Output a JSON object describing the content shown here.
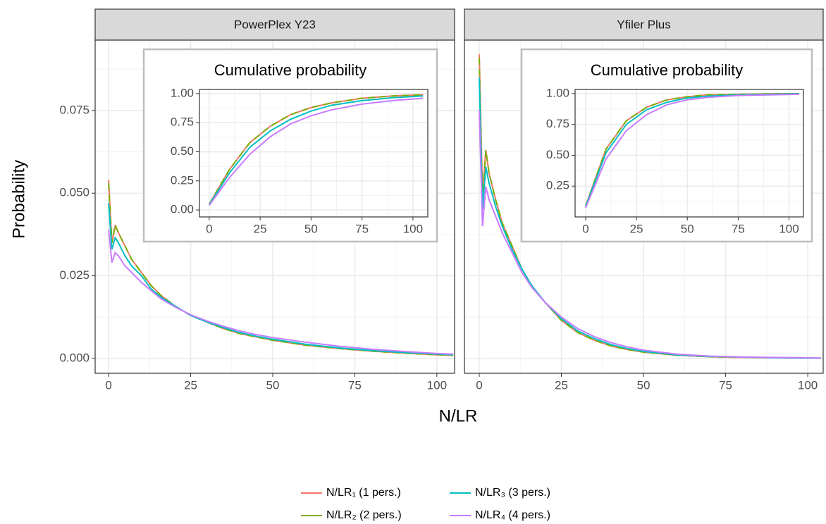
{
  "chart_data": {
    "type": "line",
    "xlabel": "N/LR",
    "ylabel": "Probability",
    "legend": "bottom",
    "series": [
      {
        "name": "N/LR₁ (1 pers.)",
        "color": "#F8766D",
        "linestyle": "solid"
      },
      {
        "name": "N/LR₂ (2 pers.)",
        "color": "#7CAE00",
        "linestyle": "dashed"
      },
      {
        "name": "N/LR₃ (3 pers.)",
        "color": "#00BFC4",
        "linestyle": "solid"
      },
      {
        "name": "N/LR₄ (4 pers.)",
        "color": "#C77CFF",
        "linestyle": "solid"
      }
    ],
    "panels": [
      {
        "title": "PowerPlex Y23",
        "xlim": [
          -4.1,
          105.4
        ],
        "ylim": [
          -0.0045,
          0.0963
        ],
        "xticks": [
          0,
          25,
          50,
          75,
          100
        ],
        "yticks": [
          {
            "value": 0,
            "label": "0.000"
          },
          {
            "value": 0.025,
            "label": "0.025"
          },
          {
            "value": 0.05,
            "label": "0.050"
          },
          {
            "value": 0.075,
            "label": "0.075"
          }
        ],
        "x": [
          0,
          1,
          2,
          3,
          5,
          7,
          10,
          13,
          16,
          20,
          25,
          30,
          35,
          40,
          45,
          50,
          60,
          70,
          80,
          90,
          100,
          105
        ],
        "values": [
          [
            0.054,
            0.035,
            0.04,
            0.038,
            0.034,
            0.03,
            0.026,
            0.022,
            0.019,
            0.016,
            0.013,
            0.011,
            0.009,
            0.0075,
            0.0065,
            0.0055,
            0.004,
            0.003,
            0.0022,
            0.0016,
            0.0011,
            0.0009
          ],
          [
            0.053,
            0.035,
            0.0405,
            0.038,
            0.034,
            0.03,
            0.026,
            0.022,
            0.019,
            0.016,
            0.013,
            0.011,
            0.009,
            0.0075,
            0.0065,
            0.0055,
            0.004,
            0.003,
            0.0022,
            0.0016,
            0.0011,
            0.0009
          ],
          [
            0.047,
            0.033,
            0.0365,
            0.035,
            0.031,
            0.028,
            0.025,
            0.021,
            0.0185,
            0.016,
            0.013,
            0.011,
            0.0093,
            0.0078,
            0.0067,
            0.0058,
            0.0043,
            0.0032,
            0.0024,
            0.0018,
            0.0013,
            0.0011
          ],
          [
            0.039,
            0.029,
            0.032,
            0.031,
            0.028,
            0.026,
            0.023,
            0.0205,
            0.018,
            0.0157,
            0.0132,
            0.0113,
            0.0097,
            0.0083,
            0.0072,
            0.0063,
            0.0049,
            0.0037,
            0.0028,
            0.0021,
            0.0015,
            0.0013
          ]
        ],
        "inset": {
          "title": "Cumulative probability",
          "xlim": [
            -4.8,
            107.3
          ],
          "ylim": [
            -0.06,
            1.036
          ],
          "xticks": [
            0,
            25,
            50,
            75,
            100
          ],
          "yticks": [
            {
              "value": 0,
              "label": "0.00"
            },
            {
              "value": 0.25,
              "label": "0.25"
            },
            {
              "value": 0.5,
              "label": "0.50"
            },
            {
              "value": 0.75,
              "label": "0.75"
            },
            {
              "value": 1,
              "label": "1.00"
            }
          ],
          "x": [
            0,
            10,
            20,
            30,
            40,
            50,
            60,
            75,
            90,
            105
          ],
          "values": [
            [
              0.05,
              0.35,
              0.58,
              0.72,
              0.82,
              0.88,
              0.92,
              0.96,
              0.98,
              0.99
            ],
            [
              0.05,
              0.35,
              0.58,
              0.72,
              0.82,
              0.88,
              0.92,
              0.96,
              0.98,
              0.99
            ],
            [
              0.045,
              0.32,
              0.54,
              0.68,
              0.78,
              0.85,
              0.9,
              0.94,
              0.965,
              0.98
            ],
            [
              0.04,
              0.28,
              0.48,
              0.63,
              0.74,
              0.81,
              0.86,
              0.91,
              0.94,
              0.96
            ]
          ]
        }
      },
      {
        "title": "Yfiler Plus",
        "xlim": [
          -4.5,
          104.7
        ],
        "ylim": [
          -0.0045,
          0.0963
        ],
        "xticks": [
          0,
          25,
          50,
          75,
          100
        ],
        "yticks": [
          0,
          0.025,
          0.05,
          0.075
        ],
        "x": [
          0,
          1,
          2,
          3,
          5,
          7,
          10,
          13,
          16,
          20,
          25,
          30,
          35,
          40,
          45,
          50,
          60,
          70,
          80,
          90,
          100,
          104
        ],
        "values": [
          [
            0.092,
            0.05,
            0.063,
            0.056,
            0.048,
            0.041,
            0.034,
            0.027,
            0.022,
            0.017,
            0.0115,
            0.0078,
            0.0055,
            0.0038,
            0.0027,
            0.0019,
            0.001,
            0.0005,
            0.0003,
            0.0002,
            0.0001,
            0.0001
          ],
          [
            0.091,
            0.047,
            0.063,
            0.056,
            0.048,
            0.041,
            0.034,
            0.027,
            0.022,
            0.017,
            0.0115,
            0.0078,
            0.0055,
            0.0038,
            0.0027,
            0.0019,
            0.001,
            0.0005,
            0.0003,
            0.0002,
            0.0001,
            0.0001
          ],
          [
            0.085,
            0.045,
            0.058,
            0.053,
            0.046,
            0.04,
            0.033,
            0.027,
            0.022,
            0.017,
            0.012,
            0.0083,
            0.006,
            0.0042,
            0.003,
            0.0021,
            0.0011,
            0.0006,
            0.0004,
            0.0002,
            0.0001,
            0.0001
          ],
          [
            0.075,
            0.04,
            0.052,
            0.048,
            0.043,
            0.038,
            0.032,
            0.026,
            0.0215,
            0.017,
            0.0125,
            0.009,
            0.0066,
            0.0048,
            0.0035,
            0.0025,
            0.0013,
            0.0007,
            0.0004,
            0.0003,
            0.0002,
            0.0001
          ]
        ],
        "inset": {
          "title": "Cumulative probability",
          "xlim": [
            -5.2,
            107.1
          ],
          "ylim": [
            0,
            1.034
          ],
          "xticks": [
            0,
            25,
            50,
            75,
            100
          ],
          "yticks": [
            {
              "value": 0.25,
              "label": "0.25"
            },
            {
              "value": 0.5,
              "label": "0.50"
            },
            {
              "value": 0.75,
              "label": "0.75"
            },
            {
              "value": 1,
              "label": "1.00"
            }
          ],
          "x": [
            0,
            10,
            20,
            30,
            40,
            50,
            60,
            75,
            90,
            105
          ],
          "values": [
            [
              0.09,
              0.55,
              0.78,
              0.89,
              0.95,
              0.975,
              0.99,
              0.995,
              0.998,
              1.0
            ],
            [
              0.09,
              0.55,
              0.78,
              0.89,
              0.95,
              0.975,
              0.99,
              0.995,
              0.998,
              1.0
            ],
            [
              0.085,
              0.52,
              0.75,
              0.87,
              0.93,
              0.965,
              0.98,
              0.99,
              0.995,
              0.998
            ],
            [
              0.075,
              0.47,
              0.7,
              0.83,
              0.91,
              0.95,
              0.97,
              0.985,
              0.99,
              0.995
            ]
          ]
        }
      }
    ]
  }
}
